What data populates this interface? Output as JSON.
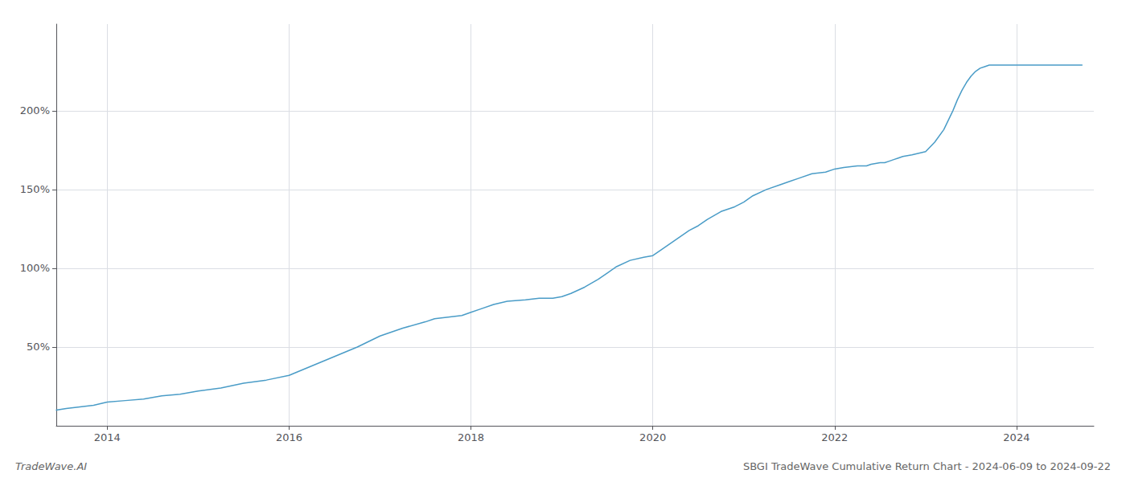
{
  "chart_data": {
    "type": "line",
    "title": "SBGI TradeWave Cumulative Return Chart - 2024-06-09 to 2024-09-22",
    "annotations": [
      "TradeWave.AI"
    ],
    "color": "#4a9cc7",
    "grid": true,
    "x": [
      2013.44,
      2013.55,
      2013.7,
      2013.85,
      2014.0,
      2014.2,
      2014.4,
      2014.6,
      2014.8,
      2015.0,
      2015.25,
      2015.5,
      2015.75,
      2016.0,
      2016.25,
      2016.5,
      2016.75,
      2017.0,
      2017.25,
      2017.5,
      2017.6,
      2017.75,
      2017.9,
      2018.0,
      2018.1,
      2018.25,
      2018.4,
      2018.6,
      2018.75,
      2018.9,
      2019.0,
      2019.1,
      2019.25,
      2019.4,
      2019.5,
      2019.6,
      2019.75,
      2019.9,
      2020.0,
      2020.1,
      2020.25,
      2020.4,
      2020.5,
      2020.6,
      2020.75,
      2020.9,
      2021.0,
      2021.1,
      2021.25,
      2021.4,
      2021.5,
      2021.6,
      2021.75,
      2021.9,
      2022.0,
      2022.1,
      2022.25,
      2022.35,
      2022.4,
      2022.5,
      2022.55,
      2022.6,
      2022.65,
      2022.7,
      2022.75,
      2022.85,
      2023.0,
      2023.1,
      2023.2,
      2023.25,
      2023.3,
      2023.35,
      2023.4,
      2023.45,
      2023.5,
      2023.55,
      2023.6,
      2023.65,
      2023.7,
      2024.0,
      2024.1,
      2024.2,
      2024.3,
      2024.4,
      2024.5,
      2024.6,
      2024.72
    ],
    "values": [
      10,
      11,
      12,
      13,
      15,
      16,
      17,
      19,
      20,
      22,
      24,
      27,
      29,
      32,
      38,
      44,
      50,
      57,
      62,
      66,
      68,
      69,
      70,
      72,
      74,
      77,
      79,
      80,
      81,
      81,
      82,
      84,
      88,
      93,
      97,
      101,
      105,
      107,
      108,
      112,
      118,
      124,
      127,
      131,
      136,
      139,
      142,
      146,
      150,
      153,
      155,
      157,
      160,
      161,
      163,
      164,
      165,
      165,
      166,
      167,
      167,
      168,
      169,
      170,
      171,
      172,
      174,
      180,
      188,
      194,
      200,
      207,
      213,
      218,
      222,
      225,
      227,
      228,
      229,
      229,
      229,
      229,
      229,
      229,
      229,
      229,
      229
    ],
    "xlim": [
      2013.44,
      2024.85
    ],
    "xticks": [
      2014,
      2016,
      2018,
      2020,
      2022,
      2024
    ],
    "ylim": [
      0,
      255
    ],
    "yticks": [
      {
        "value": 50,
        "label": "50%"
      },
      {
        "value": 100,
        "label": "100%"
      },
      {
        "value": 150,
        "label": "150%"
      },
      {
        "value": 200,
        "label": "200%"
      }
    ]
  }
}
